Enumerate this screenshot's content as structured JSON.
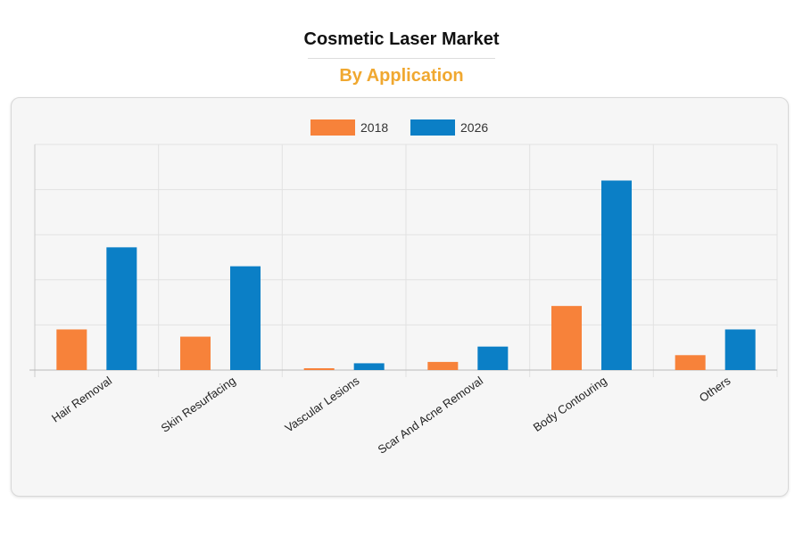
{
  "header": {
    "title": "Cosmetic Laser Market",
    "subtitle": "By Application",
    "subtitle_color": "#f0a830"
  },
  "chart_data": {
    "type": "bar",
    "categories": [
      "Hair Removal",
      "Skin Resurfacing",
      "Vascular Lesions",
      "Scar And Acne Removal",
      "Body Contouring",
      "Others"
    ],
    "series": [
      {
        "name": "2018",
        "color": "#f7823a",
        "values": [
          0.9,
          0.74,
          0.04,
          0.18,
          1.42,
          0.33
        ]
      },
      {
        "name": "2026",
        "color": "#0b7fc6",
        "values": [
          2.72,
          2.3,
          0.15,
          0.52,
          4.2,
          0.9
        ]
      }
    ],
    "ylim": [
      0,
      5
    ],
    "grid": true,
    "legend_position": "top-center",
    "y_tick_labels_visible": false
  }
}
